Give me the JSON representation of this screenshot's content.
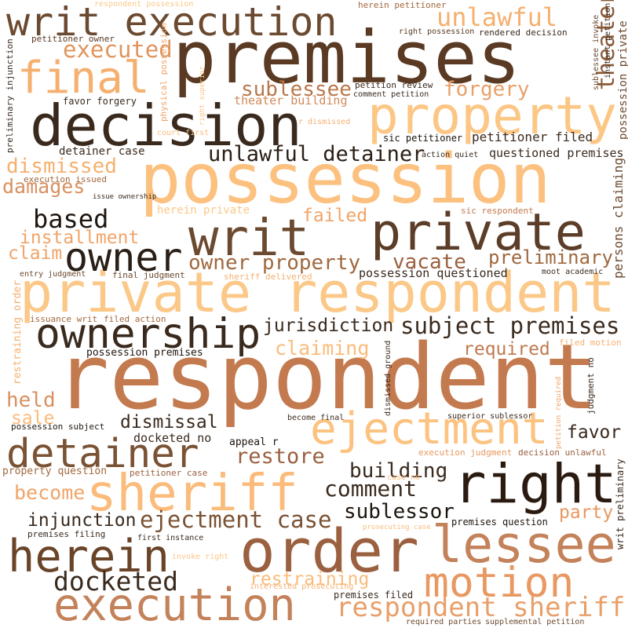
{
  "words": [
    "premises",
    "possession",
    "respondent",
    "private respondent",
    "decision",
    "writ execution",
    "property",
    "private",
    "writ",
    "final",
    "owner",
    "ownership",
    "right",
    "order",
    "sheriff",
    "detainer",
    "ejectment",
    "lessee",
    "herein",
    "motion",
    "execution",
    "respondent sheriff",
    "unlawful",
    "executed",
    "sublessee",
    "forgery",
    "theater building",
    "theater",
    "unlawful detainer",
    "detainer case",
    "dismissed",
    "damages",
    "based",
    "installment",
    "claim",
    "failed",
    "owner property",
    "vacate",
    "preliminary",
    "persons claiming",
    "possession private",
    "jurisdiction",
    "subject premises",
    "claiming",
    "required",
    "held",
    "sale",
    "dismissal",
    "favor",
    "restore",
    "building",
    "comment",
    "sublessor",
    "injunction",
    "ejectment case",
    "party",
    "become",
    "docketed",
    "restraining",
    "docketed no",
    "appeal r",
    "interested prosecuting",
    "respondent possession",
    "herein petitioner",
    "right possession",
    "rendered decision",
    "petitioner owner",
    "physical possession",
    "right superior",
    "sublessee invoke",
    "instant petition",
    "preliminary injunction",
    "favor forgery",
    "petition review",
    "comment petition",
    "r dismissed",
    "court first",
    "sic petitioner",
    "petitioner filed",
    "action quiet",
    "questioned premises",
    "execution issued",
    "issue ownership",
    "herein private",
    "sic respondent",
    "entry judgment",
    "final judgment",
    "sheriff delivered",
    "possession questioned",
    "moot academic",
    "restraining order",
    "issuance writ",
    "filed action",
    "filed motion",
    "possession premises",
    "dismissed ground",
    "petition required",
    "judgment no",
    "become final",
    "superior sublessor",
    "possession subject",
    "execution judgment",
    "decision unlawful",
    "writ preliminary",
    "property question",
    "petitioner case",
    "case no",
    "premises question",
    "premises filing",
    "prosecuting case",
    "first instance",
    "invoke right",
    "premises filed",
    "required parties",
    "supplemental petition"
  ]
}
